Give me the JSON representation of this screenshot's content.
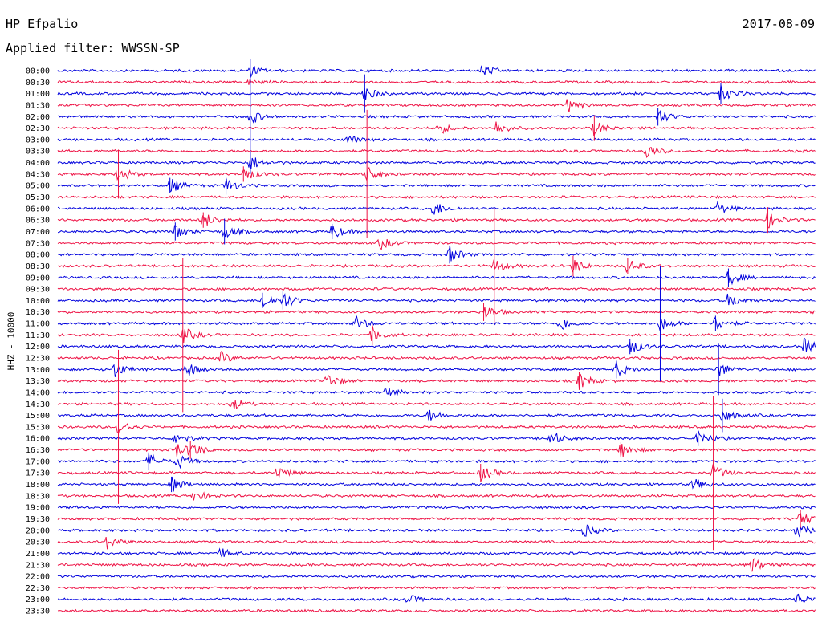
{
  "header": {
    "station": "HP Efpalio",
    "date": "2017-08-09",
    "filter": "Applied filter: WWSSN-SP"
  },
  "chart_data": {
    "type": "line",
    "title": "HP Efpalio",
    "subtitle": "Applied filter: WWSSN-SP",
    "ylabel": "HHZ - 10000",
    "colors": [
      "#0000dd",
      "#ee1144"
    ],
    "grid": false,
    "legend": "none",
    "tick_labels": [
      "00:00",
      "00:30",
      "01:00",
      "01:30",
      "02:00",
      "02:30",
      "03:00",
      "03:30",
      "04:00",
      "04:30",
      "05:00",
      "05:30",
      "06:00",
      "06:30",
      "07:00",
      "07:30",
      "08:00",
      "08:30",
      "09:00",
      "09:30",
      "10:00",
      "10:30",
      "11:00",
      "11:30",
      "12:00",
      "12:30",
      "13:00",
      "13:30",
      "14:00",
      "14:30",
      "15:00",
      "15:30",
      "16:00",
      "16:30",
      "17:00",
      "17:30",
      "18:00",
      "18:30",
      "19:00",
      "19:30",
      "20:00",
      "20:30",
      "21:00",
      "21:30",
      "22:00",
      "22:30",
      "23:00",
      "23:30"
    ],
    "events": [
      {
        "row": 0,
        "x": 0.56,
        "amp": 8
      },
      {
        "row": 0,
        "x": 0.255,
        "amp": 6
      },
      {
        "row": 1,
        "x": 0.25,
        "amp": 4
      },
      {
        "row": 2,
        "x": 0.405,
        "amp": 30
      },
      {
        "row": 2,
        "x": 0.875,
        "amp": 16
      },
      {
        "row": 3,
        "x": 0.673,
        "amp": 10
      },
      {
        "row": 4,
        "x": 0.254,
        "amp": 90
      },
      {
        "row": 4,
        "x": 0.792,
        "amp": 14
      },
      {
        "row": 5,
        "x": 0.502,
        "amp": 8
      },
      {
        "row": 5,
        "x": 0.578,
        "amp": 9
      },
      {
        "row": 5,
        "x": 0.708,
        "amp": 20
      },
      {
        "row": 6,
        "x": 0.383,
        "amp": 6
      },
      {
        "row": 7,
        "x": 0.775,
        "amp": 10
      },
      {
        "row": 8,
        "x": 0.254,
        "amp": 16
      },
      {
        "row": 9,
        "x": 0.08,
        "amp": 38
      },
      {
        "row": 9,
        "x": 0.408,
        "amp": 100
      },
      {
        "row": 9,
        "x": 0.245,
        "amp": 12
      },
      {
        "row": 10,
        "x": 0.148,
        "amp": 12
      },
      {
        "row": 10,
        "x": 0.222,
        "amp": 14
      },
      {
        "row": 12,
        "x": 0.495,
        "amp": 10
      },
      {
        "row": 12,
        "x": 0.87,
        "amp": 8
      },
      {
        "row": 13,
        "x": 0.192,
        "amp": 12
      },
      {
        "row": 13,
        "x": 0.937,
        "amp": 20
      },
      {
        "row": 14,
        "x": 0.155,
        "amp": 14
      },
      {
        "row": 14,
        "x": 0.362,
        "amp": 12
      },
      {
        "row": 14,
        "x": 0.22,
        "amp": 20
      },
      {
        "row": 15,
        "x": 0.425,
        "amp": 8
      },
      {
        "row": 16,
        "x": 0.517,
        "amp": 14
      },
      {
        "row": 17,
        "x": 0.576,
        "amp": 90
      },
      {
        "row": 17,
        "x": 0.68,
        "amp": 16
      },
      {
        "row": 17,
        "x": 0.752,
        "amp": 12
      },
      {
        "row": 18,
        "x": 0.885,
        "amp": 14
      },
      {
        "row": 20,
        "x": 0.27,
        "amp": 12
      },
      {
        "row": 20,
        "x": 0.297,
        "amp": 14
      },
      {
        "row": 20,
        "x": 0.885,
        "amp": 10
      },
      {
        "row": 21,
        "x": 0.562,
        "amp": 14
      },
      {
        "row": 22,
        "x": 0.392,
        "amp": 10
      },
      {
        "row": 22,
        "x": 0.663,
        "amp": 10
      },
      {
        "row": 22,
        "x": 0.795,
        "amp": 90
      },
      {
        "row": 22,
        "x": 0.868,
        "amp": 12
      },
      {
        "row": 23,
        "x": 0.165,
        "amp": 120
      },
      {
        "row": 23,
        "x": 0.415,
        "amp": 16
      },
      {
        "row": 24,
        "x": 0.755,
        "amp": 12
      },
      {
        "row": 24,
        "x": 0.985,
        "amp": 10
      },
      {
        "row": 25,
        "x": 0.215,
        "amp": 8
      },
      {
        "row": 26,
        "x": 0.075,
        "amp": 10
      },
      {
        "row": 26,
        "x": 0.17,
        "amp": 10
      },
      {
        "row": 26,
        "x": 0.737,
        "amp": 14
      },
      {
        "row": 26,
        "x": 0.872,
        "amp": 40
      },
      {
        "row": 27,
        "x": 0.355,
        "amp": 10
      },
      {
        "row": 27,
        "x": 0.688,
        "amp": 14
      },
      {
        "row": 28,
        "x": 0.432,
        "amp": 8
      },
      {
        "row": 29,
        "x": 0.23,
        "amp": 8
      },
      {
        "row": 30,
        "x": 0.877,
        "amp": 26
      },
      {
        "row": 30,
        "x": 0.49,
        "amp": 8
      },
      {
        "row": 31,
        "x": 0.08,
        "amp": 120
      },
      {
        "row": 32,
        "x": 0.155,
        "amp": 10
      },
      {
        "row": 32,
        "x": 0.65,
        "amp": 10
      },
      {
        "row": 32,
        "x": 0.845,
        "amp": 12
      },
      {
        "row": 33,
        "x": 0.175,
        "amp": 14
      },
      {
        "row": 33,
        "x": 0.155,
        "amp": 10
      },
      {
        "row": 33,
        "x": 0.743,
        "amp": 12
      },
      {
        "row": 34,
        "x": 0.12,
        "amp": 14
      },
      {
        "row": 34,
        "x": 0.157,
        "amp": 10
      },
      {
        "row": 35,
        "x": 0.558,
        "amp": 14
      },
      {
        "row": 35,
        "x": 0.865,
        "amp": 120
      },
      {
        "row": 35,
        "x": 0.29,
        "amp": 8
      },
      {
        "row": 36,
        "x": 0.15,
        "amp": 12
      },
      {
        "row": 36,
        "x": 0.838,
        "amp": 8
      },
      {
        "row": 37,
        "x": 0.18,
        "amp": 8
      },
      {
        "row": 39,
        "x": 0.98,
        "amp": 14
      },
      {
        "row": 40,
        "x": 0.975,
        "amp": 10
      },
      {
        "row": 40,
        "x": 0.695,
        "amp": 8
      },
      {
        "row": 41,
        "x": 0.065,
        "amp": 8
      },
      {
        "row": 42,
        "x": 0.215,
        "amp": 6
      },
      {
        "row": 43,
        "x": 0.915,
        "amp": 10
      },
      {
        "row": 46,
        "x": 0.975,
        "amp": 8
      },
      {
        "row": 46,
        "x": 0.462,
        "amp": 6
      }
    ]
  }
}
